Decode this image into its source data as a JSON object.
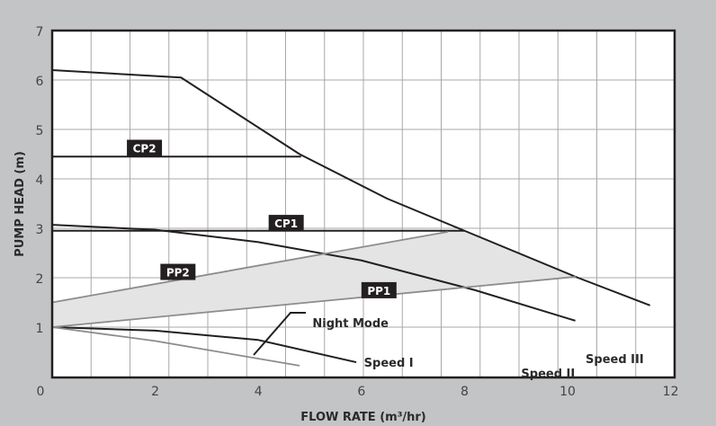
{
  "chart_data": {
    "type": "line",
    "xlabel": "FLOW RATE (m³/hr)",
    "ylabel": "PUMP HEAD (m)",
    "xlim": [
      0,
      12
    ],
    "ylim": [
      0,
      7
    ],
    "xticks": [
      "0",
      "2",
      "4",
      "6",
      "8",
      "10",
      "12"
    ],
    "yticks": [
      "1",
      "2",
      "3",
      "4",
      "5",
      "6",
      "7"
    ],
    "grid": true,
    "colors": {
      "background": "#c3c4c6",
      "plot": "#ffffff",
      "curve": "#231f20",
      "pp_line": "#8c8c8c",
      "shade": "#e4e4e5",
      "grid": "#a8a8a8",
      "label_box": "#231f20"
    },
    "series": [
      {
        "name": "Speed III",
        "color": "#231f20",
        "points": [
          [
            0,
            6.2
          ],
          [
            2.5,
            6.05
          ],
          [
            4.8,
            4.5
          ],
          [
            6.5,
            3.6
          ],
          [
            8,
            2.95
          ],
          [
            10.2,
            2.0
          ],
          [
            11.6,
            1.44
          ]
        ]
      },
      {
        "name": "Speed II",
        "color": "#231f20",
        "points": [
          [
            0,
            3.07
          ],
          [
            2,
            2.97
          ],
          [
            4,
            2.72
          ],
          [
            6,
            2.35
          ],
          [
            8.2,
            1.75
          ],
          [
            10.15,
            1.13
          ]
        ]
      },
      {
        "name": "Speed I",
        "color": "#231f20",
        "points": [
          [
            0,
            1.0
          ],
          [
            2,
            0.93
          ],
          [
            4,
            0.74
          ],
          [
            5.9,
            0.29
          ]
        ]
      },
      {
        "name": "Night Mode",
        "color": "#8c8c8c",
        "points": [
          [
            0,
            1.0
          ],
          [
            2,
            0.72
          ],
          [
            4.8,
            0.22
          ]
        ]
      },
      {
        "name": "CP2",
        "color": "#231f20",
        "points": [
          [
            0,
            4.45
          ],
          [
            4.83,
            4.45
          ]
        ]
      },
      {
        "name": "CP1",
        "color": "#231f20",
        "points": [
          [
            0,
            2.95
          ],
          [
            8.0,
            2.95
          ]
        ]
      },
      {
        "name": "PP2",
        "color": "#8c8c8c",
        "points": [
          [
            0,
            1.5
          ],
          [
            7.68,
            2.93
          ]
        ]
      },
      {
        "name": "PP1",
        "color": "#8c8c8c",
        "points": [
          [
            0,
            1.0
          ],
          [
            10.16,
            2.02
          ]
        ]
      }
    ],
    "shaded_region": [
      [
        0,
        1.5
      ],
      [
        7.68,
        2.93
      ],
      [
        8.0,
        2.95
      ],
      [
        10.16,
        2.02
      ],
      [
        0,
        1.0
      ]
    ],
    "annotations": {
      "boxed": [
        {
          "text": "CP2",
          "at": [
            1.45,
            4.5
          ]
        },
        {
          "text": "CP1",
          "at": [
            4.2,
            2.98
          ]
        },
        {
          "text": "PP2",
          "at": [
            2.1,
            1.99
          ]
        },
        {
          "text": "PP1",
          "at": [
            6.0,
            1.62
          ]
        }
      ],
      "plain": [
        {
          "text": "Night Mode",
          "at": [
            5.05,
            1.0
          ]
        },
        {
          "text": "Speed I",
          "at": [
            6.05,
            0.2
          ]
        },
        {
          "text": "Speed II",
          "at": [
            9.1,
            -0.02
          ]
        },
        {
          "text": "Speed III",
          "at": [
            10.35,
            0.27
          ]
        }
      ]
    }
  }
}
